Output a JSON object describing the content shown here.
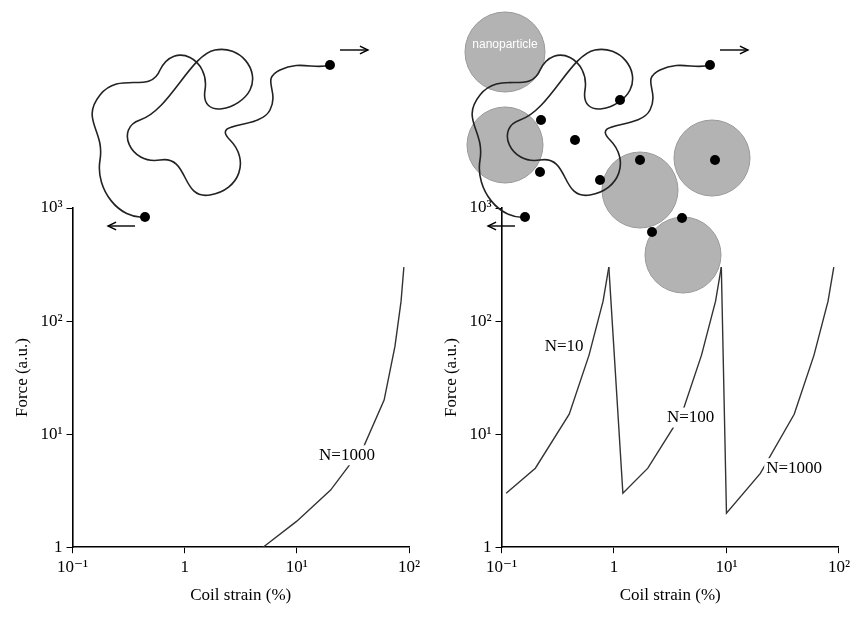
{
  "chart_data": [
    {
      "type": "line",
      "log": true,
      "grid": false,
      "legend": "none",
      "x_label": "Coil strain (%)",
      "y_label": "Force (a.u.)",
      "xlim": [
        0.1,
        100
      ],
      "ylim": [
        1,
        1000
      ],
      "xticks": [
        {
          "value": 0.1,
          "label": "10⁻¹"
        },
        1,
        {
          "value": 10,
          "label": "10¹"
        },
        {
          "value": 100,
          "label": "10²"
        }
      ],
      "yticks": [
        1,
        {
          "value": 10,
          "label": "10¹"
        },
        {
          "value": 100,
          "label": "10²"
        },
        {
          "value": 1000,
          "label": "10³"
        }
      ],
      "series": [
        {
          "name": "N=1000",
          "color": "#333333",
          "label_x": 28,
          "label_y": 6.5,
          "x": [
            5,
            10,
            20,
            40,
            60,
            75,
            85,
            90
          ],
          "values": [
            1,
            1.7,
            3.2,
            8,
            20,
            60,
            150,
            300
          ]
        }
      ]
    },
    {
      "type": "line",
      "log": true,
      "grid": false,
      "legend": "none",
      "x_label": "Coil strain (%)",
      "y_label": "Force (a.u.)",
      "xlim": [
        0.1,
        100
      ],
      "ylim": [
        1,
        1000
      ],
      "xticks": [
        {
          "value": 0.1,
          "label": "10⁻¹"
        },
        1,
        {
          "value": 10,
          "label": "10¹"
        },
        {
          "value": 100,
          "label": "10²"
        }
      ],
      "yticks": [
        1,
        {
          "value": 10,
          "label": "10¹"
        },
        {
          "value": 100,
          "label": "10²"
        },
        {
          "value": 1000,
          "label": "10³"
        }
      ],
      "annotations": [
        {
          "text": "nanoparticle"
        }
      ],
      "series": [
        {
          "name": "N=10",
          "color": "#333333",
          "label_x": 0.36,
          "label_y": 60,
          "x": [
            0.11,
            0.2,
            0.4,
            0.6,
            0.8,
            0.9
          ],
          "values": [
            3,
            5,
            15,
            50,
            150,
            300
          ]
        },
        {
          "name": "N=100",
          "color": "#333333",
          "label_x": 4.8,
          "label_y": 14,
          "x": [
            0.9,
            1.2,
            2,
            4,
            6,
            8,
            9
          ],
          "values": [
            300,
            3,
            5,
            15,
            50,
            150,
            300
          ]
        },
        {
          "name": "N=1000",
          "color": "#333333",
          "label_x": 40,
          "label_y": 5,
          "x": [
            9,
            10,
            20,
            40,
            60,
            80,
            90
          ],
          "values": [
            300,
            2,
            4.5,
            15,
            50,
            150,
            300
          ]
        }
      ]
    }
  ]
}
